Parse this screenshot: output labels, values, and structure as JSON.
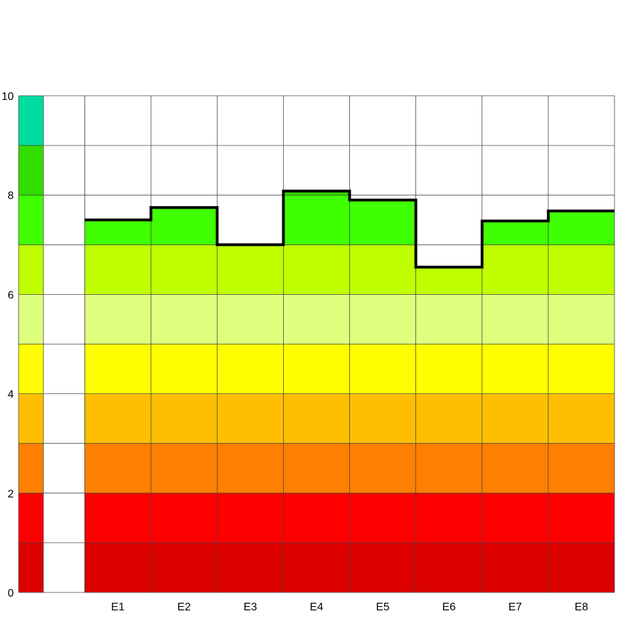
{
  "chart_data": {
    "type": "bar",
    "title": "",
    "xlabel": "",
    "ylabel": "",
    "ylim": [
      0,
      10
    ],
    "grid": true,
    "y_ticks": [
      "0",
      "2",
      "4",
      "6",
      "8",
      "10"
    ],
    "categories": [
      "E1",
      "E2",
      "E3",
      "E4",
      "E5",
      "E6",
      "E7",
      "E8"
    ],
    "values": [
      7.5,
      7.75,
      7.0,
      8.08,
      7.9,
      6.55,
      7.48,
      7.68
    ],
    "score_bands": [
      {
        "from": 0,
        "to": 1,
        "color": "#dd0000"
      },
      {
        "from": 1,
        "to": 2,
        "color": "#ff0000"
      },
      {
        "from": 2,
        "to": 3,
        "color": "#ff7f00"
      },
      {
        "from": 3,
        "to": 4,
        "color": "#ffbf00"
      },
      {
        "from": 4,
        "to": 5,
        "color": "#ffff00"
      },
      {
        "from": 5,
        "to": 6,
        "color": "#dfff7f"
      },
      {
        "from": 6,
        "to": 7,
        "color": "#bfff00"
      },
      {
        "from": 7,
        "to": 8,
        "color": "#3fff00"
      },
      {
        "from": 8,
        "to": 9,
        "color": "#33dd00"
      },
      {
        "from": 9,
        "to": 10,
        "color": "#00dd9f"
      }
    ],
    "outline_color": "#000000"
  }
}
